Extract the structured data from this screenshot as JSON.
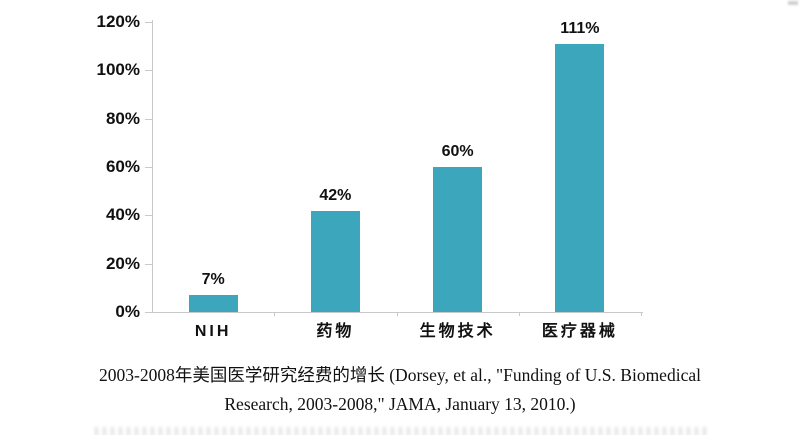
{
  "chart_data": {
    "type": "bar",
    "categories": [
      "NIH",
      "药物",
      "生物技术",
      "医疗器械"
    ],
    "values": [
      7,
      42,
      60,
      111
    ],
    "value_labels": [
      "7%",
      "42%",
      "60%",
      "111%"
    ],
    "y_tick_labels": [
      "120%",
      "100%",
      "80%",
      "60%",
      "40%",
      "20%",
      "0%"
    ],
    "y_tick_values": [
      120,
      100,
      80,
      60,
      40,
      20,
      0
    ],
    "ylim": [
      0,
      120
    ],
    "title": "",
    "xlabel": "",
    "ylabel": "",
    "grid": false,
    "legend": "none",
    "bar_color": "#3ca6bd",
    "axis_color": "#c9c9c9",
    "label_color": "#111111"
  },
  "caption": {
    "line1": "2003-2008年美国医学研究经费的增长 (Dorsey, et al., \"Funding of U.S. Biomedical",
    "line2": "Research, 2003-2008,\" JAMA, January 13, 2010.)"
  }
}
